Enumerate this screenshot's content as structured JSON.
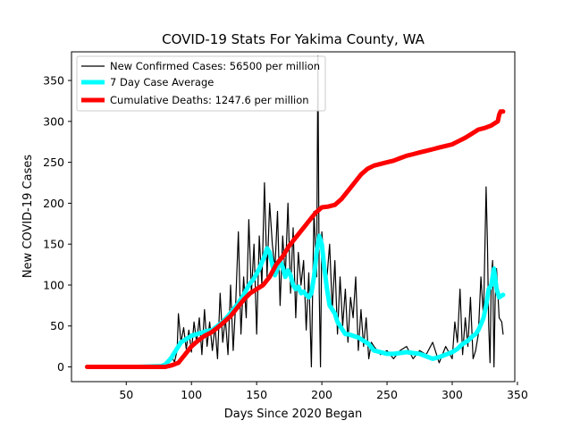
{
  "chart_data": {
    "type": "line",
    "title": "COVID-19 Stats For Yakima County, WA",
    "xlabel": "Days Since 2020 Began",
    "ylabel": "New COVID-19 Cases",
    "xlim": [
      8,
      348
    ],
    "ylim": [
      -18,
      385
    ],
    "xticks": [
      50,
      100,
      150,
      200,
      250,
      300,
      350
    ],
    "yticks": [
      0,
      50,
      100,
      150,
      200,
      250,
      300,
      350
    ],
    "grid": false,
    "legend_position": "top-left",
    "series": [
      {
        "name": "New Confirmed Cases: 56500 per million",
        "color": "#000000",
        "style": "thin-line",
        "x": [
          20,
          40,
          60,
          77,
          80,
          83,
          85,
          87,
          89,
          90,
          92,
          94,
          96,
          98,
          100,
          102,
          104,
          106,
          108,
          110,
          112,
          114,
          116,
          118,
          120,
          122,
          124,
          126,
          128,
          130,
          132,
          134,
          136,
          138,
          140,
          142,
          144,
          146,
          148,
          150,
          152,
          154,
          156,
          158,
          160,
          162,
          164,
          166,
          168,
          170,
          172,
          174,
          176,
          178,
          180,
          182,
          184,
          186,
          188,
          190,
          192,
          194,
          196,
          197,
          198,
          199,
          200,
          202,
          204,
          206,
          208,
          210,
          212,
          214,
          216,
          218,
          220,
          222,
          224,
          226,
          228,
          230,
          232,
          234,
          236,
          238,
          240,
          245,
          250,
          255,
          260,
          265,
          270,
          275,
          280,
          285,
          290,
          295,
          300,
          302,
          304,
          306,
          308,
          310,
          312,
          314,
          316,
          318,
          320,
          322,
          324,
          326,
          327,
          328,
          329,
          330,
          331,
          332,
          333,
          334,
          336,
          338,
          339
        ],
        "y": [
          0,
          0,
          0,
          1,
          3,
          8,
          12,
          6,
          20,
          65,
          30,
          48,
          22,
          45,
          18,
          55,
          30,
          60,
          15,
          70,
          25,
          55,
          20,
          50,
          10,
          90,
          30,
          60,
          15,
          100,
          20,
          80,
          165,
          40,
          110,
          60,
          180,
          90,
          150,
          40,
          160,
          100,
          225,
          110,
          200,
          150,
          120,
          190,
          75,
          160,
          110,
          200,
          90,
          170,
          60,
          140,
          100,
          130,
          45,
          115,
          0,
          190,
          110,
          380,
          90,
          0,
          165,
          120,
          110,
          150,
          70,
          130,
          40,
          110,
          50,
          95,
          30,
          85,
          60,
          110,
          20,
          70,
          25,
          60,
          10,
          30,
          25,
          15,
          20,
          10,
          20,
          25,
          10,
          20,
          15,
          30,
          5,
          25,
          10,
          55,
          30,
          95,
          15,
          60,
          25,
          85,
          10,
          20,
          40,
          110,
          60,
          220,
          150,
          50,
          5,
          110,
          130,
          0,
          85,
          120,
          60,
          55,
          40
        ]
      },
      {
        "name": "7 Day Case Average",
        "color": "#00ffff",
        "style": "thick-line",
        "x": [
          20,
          40,
          60,
          77,
          80,
          84,
          88,
          92,
          96,
          100,
          104,
          108,
          112,
          116,
          120,
          124,
          128,
          132,
          136,
          140,
          144,
          148,
          152,
          156,
          158,
          160,
          162,
          164,
          166,
          168,
          170,
          172,
          174,
          176,
          178,
          180,
          182,
          184,
          186,
          188,
          190,
          192,
          194,
          196,
          198,
          200,
          202,
          204,
          206,
          208,
          210,
          212,
          214,
          216,
          218,
          220,
          224,
          228,
          232,
          236,
          240,
          245,
          250,
          255,
          260,
          265,
          270,
          275,
          280,
          285,
          290,
          295,
          300,
          304,
          306,
          308,
          310,
          312,
          314,
          316,
          318,
          320,
          322,
          324,
          326,
          328,
          330,
          332,
          334,
          336,
          339
        ],
        "y": [
          0,
          0,
          0,
          1,
          3,
          10,
          20,
          30,
          34,
          38,
          40,
          42,
          44,
          45,
          50,
          55,
          62,
          70,
          78,
          88,
          100,
          108,
          120,
          135,
          145,
          140,
          125,
          112,
          120,
          130,
          122,
          110,
          118,
          112,
          100,
          95,
          98,
          90,
          92,
          88,
          85,
          90,
          110,
          140,
          160,
          150,
          120,
          95,
          75,
          70,
          65,
          55,
          50,
          45,
          40,
          40,
          38,
          36,
          32,
          28,
          20,
          18,
          16,
          16,
          17,
          18,
          17,
          16,
          13,
          10,
          12,
          15,
          18,
          22,
          25,
          28,
          30,
          32,
          35,
          38,
          40,
          45,
          52,
          60,
          75,
          95,
          100,
          120,
          95,
          85,
          88
        ]
      },
      {
        "name": "Cumulative Deaths: 1247.6 per million",
        "color": "#ff0000",
        "style": "thick-line",
        "x": [
          20,
          40,
          60,
          77,
          80,
          85,
          90,
          95,
          100,
          105,
          110,
          115,
          120,
          125,
          130,
          135,
          140,
          145,
          150,
          155,
          160,
          165,
          170,
          175,
          180,
          185,
          190,
          195,
          200,
          205,
          210,
          215,
          220,
          225,
          230,
          235,
          240,
          245,
          250,
          255,
          260,
          265,
          270,
          275,
          280,
          285,
          290,
          295,
          300,
          305,
          310,
          315,
          320,
          325,
          330,
          335,
          336,
          337,
          339
        ],
        "y": [
          0,
          0,
          0,
          0,
          0,
          2,
          5,
          15,
          25,
          32,
          38,
          42,
          48,
          55,
          62,
          72,
          82,
          90,
          95,
          100,
          110,
          125,
          135,
          148,
          158,
          168,
          178,
          188,
          195,
          196,
          198,
          205,
          215,
          225,
          235,
          242,
          246,
          248,
          250,
          252,
          255,
          258,
          260,
          262,
          264,
          266,
          268,
          270,
          272,
          276,
          280,
          285,
          290,
          292,
          295,
          300,
          308,
          312,
          312
        ]
      }
    ]
  }
}
